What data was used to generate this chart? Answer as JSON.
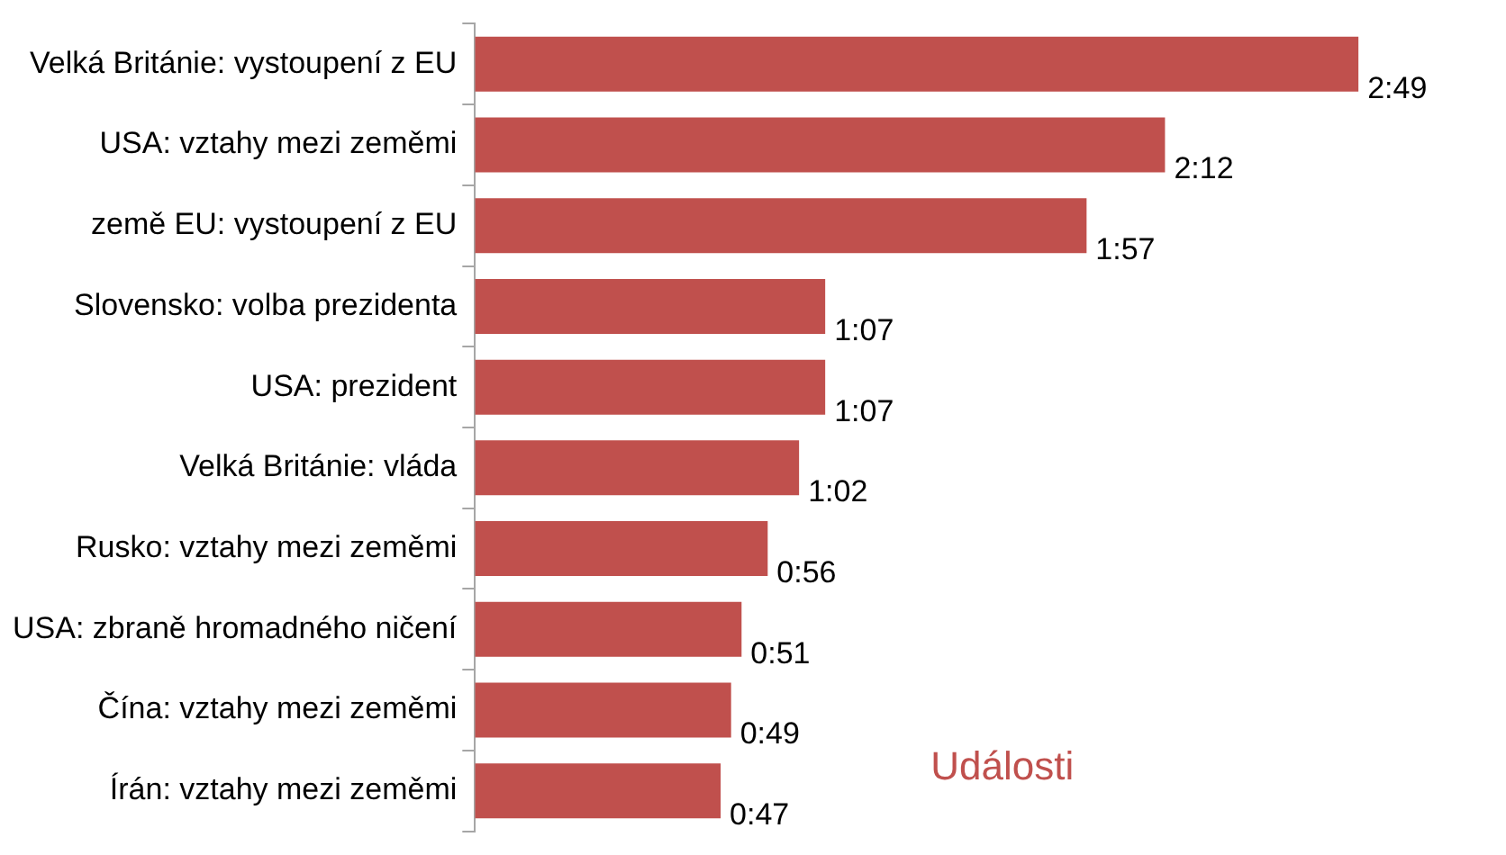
{
  "chart_data": {
    "type": "bar",
    "orientation": "horizontal",
    "categories": [
      "Velká Británie: vystoupení z EU",
      "USA: vztahy mezi zeměmi",
      "země EU: vystoupení z EU",
      "Slovensko: volba prezidenta",
      "USA: prezident",
      "Velká Británie: vláda",
      "Rusko: vztahy mezi zeměmi",
      "USA: zbraně hromadného ničení",
      "Čína: vztahy mezi zeměmi",
      "Írán: vztahy mezi zeměmi"
    ],
    "series": [
      {
        "name": "Události",
        "color": "#c0504d",
        "values": [
          169,
          132,
          117,
          67,
          67,
          62,
          56,
          51,
          49,
          47
        ],
        "value_labels": [
          "2:49",
          "2:12",
          "1:57",
          "1:07",
          "1:07",
          "1:02",
          "0:56",
          "0:51",
          "0:49",
          "0:47"
        ]
      }
    ],
    "legend": false,
    "tick_labels": "y"
  }
}
